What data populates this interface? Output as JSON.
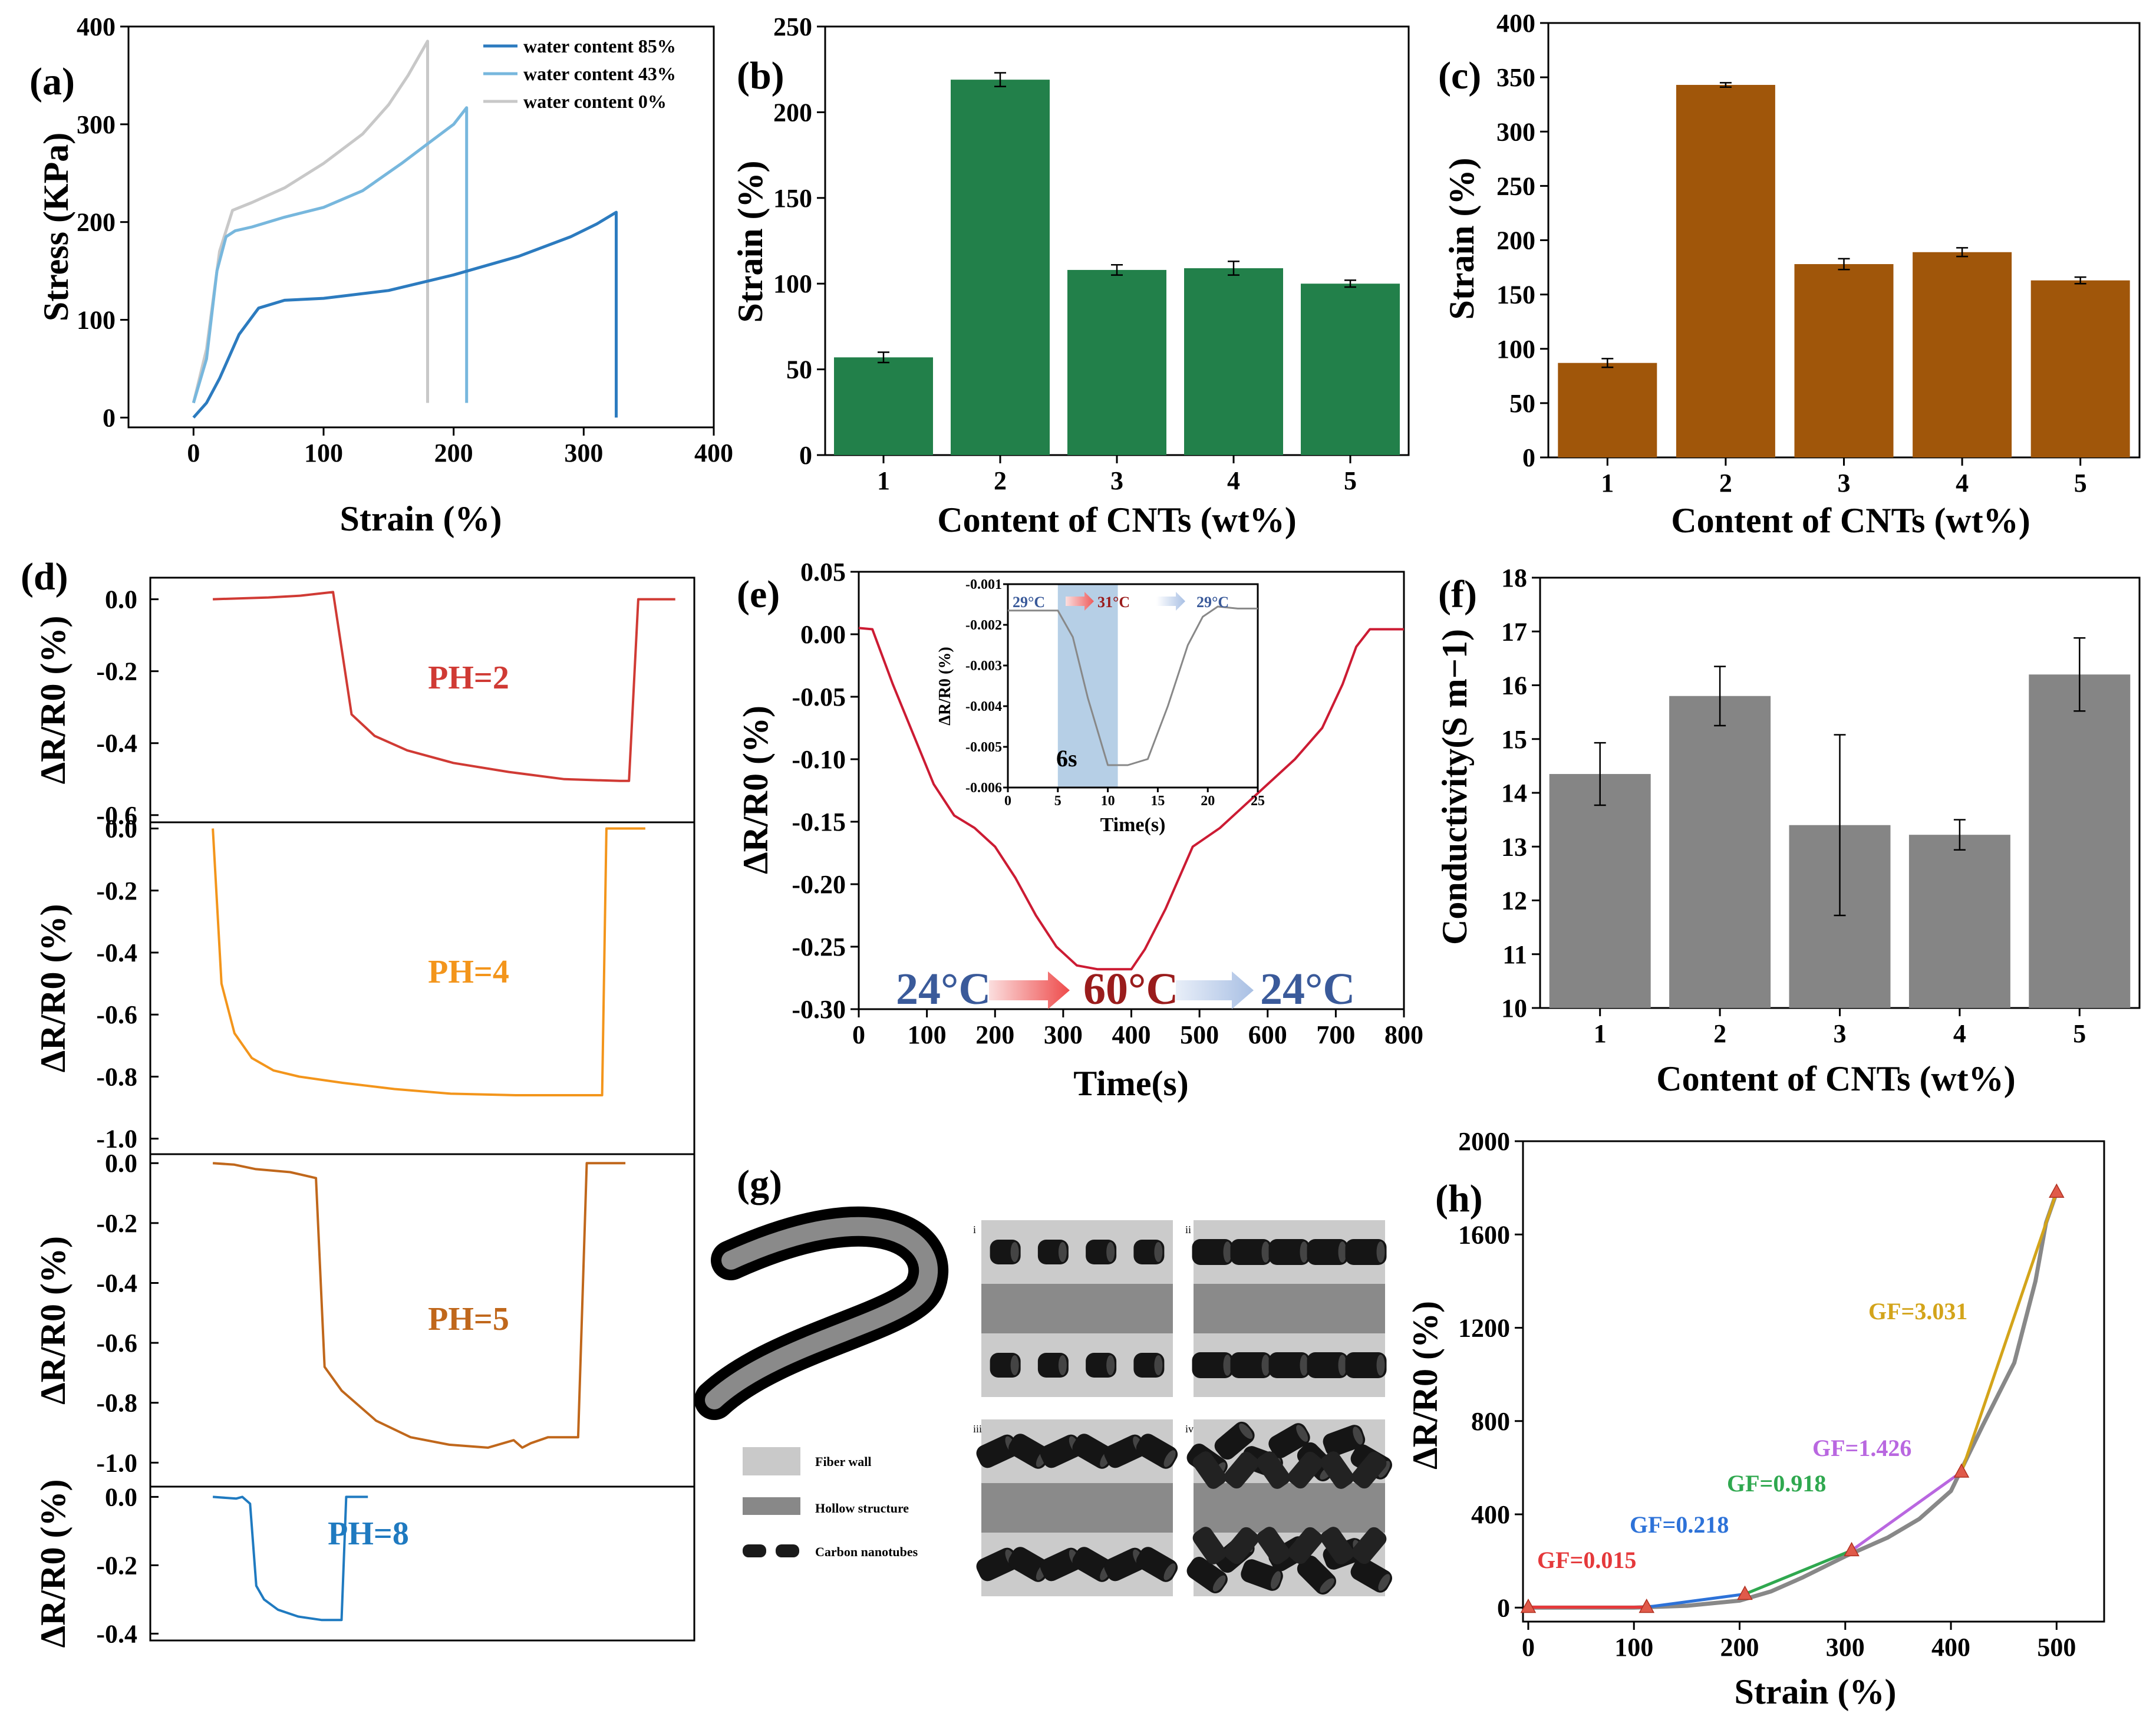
{
  "colors": {
    "green": "#22804a",
    "brown": "#a0560a",
    "gray_bar": "#858585",
    "wc85": "#2c7bbf",
    "wc43": "#77b7dd",
    "wc0": "#c8c8c8",
    "ph2": "#d03a34",
    "ph4": "#f3951b",
    "ph5": "#c0671b",
    "ph8": "#1f7ac0",
    "e_line": "#cc1b33",
    "temp_blue": "#3a5a9a",
    "temp_red": "#9a1c1c",
    "gf_red": "#e5393b",
    "gf_blue": "#2d72d8",
    "gf_green": "#2fa84f",
    "gf_purple": "#b967e0",
    "gf_gold": "#d3a41a"
  },
  "chart_data": [
    {
      "id": "a",
      "panel_label": "(a)",
      "type": "line",
      "xlabel": "Strain (%)",
      "ylabel": "Stress (KPa)",
      "xlim": [
        -50,
        400
      ],
      "ylim": [
        0,
        400
      ],
      "xticks": [
        "0",
        "100",
        "200",
        "300",
        "400"
      ],
      "yticks": [
        "0",
        "100",
        "200",
        "300",
        "400"
      ],
      "legend": [
        "water content 85%",
        "water content 43%",
        "water content 0%"
      ],
      "series": [
        {
          "name": "water content 85%",
          "x": [
            0,
            10,
            20,
            35,
            50,
            70,
            100,
            150,
            200,
            250,
            290,
            310,
            325,
            325
          ],
          "y": [
            0,
            15,
            40,
            85,
            112,
            120,
            122,
            130,
            146,
            165,
            185,
            198,
            210,
            0
          ]
        },
        {
          "name": "water content 43%",
          "x": [
            0,
            10,
            18,
            25,
            32,
            45,
            70,
            100,
            130,
            160,
            180,
            200,
            210,
            210
          ],
          "y": [
            15,
            60,
            150,
            185,
            191,
            195,
            205,
            215,
            232,
            260,
            280,
            300,
            317,
            15
          ]
        },
        {
          "name": "water content 0%",
          "x": [
            0,
            10,
            20,
            30,
            45,
            70,
            100,
            130,
            150,
            165,
            180,
            180
          ],
          "y": [
            15,
            70,
            170,
            212,
            220,
            235,
            260,
            290,
            320,
            350,
            385,
            15
          ]
        }
      ]
    },
    {
      "id": "b",
      "panel_label": "(b)",
      "type": "bar",
      "xlabel": "Content of CNTs (wt%)",
      "ylabel": "Strain (%)",
      "ylim": [
        0,
        250
      ],
      "yticks": [
        "0",
        "50",
        "100",
        "150",
        "200",
        "250"
      ],
      "categories": [
        "1",
        "2",
        "3",
        "4",
        "5"
      ],
      "values": [
        57,
        219,
        108,
        109,
        100
      ],
      "errors": [
        3,
        4,
        3,
        4,
        2
      ]
    },
    {
      "id": "c",
      "panel_label": "(c)",
      "type": "bar",
      "xlabel": "Content of CNTs (wt%)",
      "ylabel": "Strain (%)",
      "ylim": [
        0,
        400
      ],
      "yticks": [
        "0",
        "50",
        "100",
        "150",
        "200",
        "250",
        "300",
        "350",
        "400"
      ],
      "categories": [
        "1",
        "2",
        "3",
        "4",
        "5"
      ],
      "values": [
        87,
        343,
        178,
        189,
        163
      ],
      "errors": [
        4,
        2,
        5,
        4,
        3
      ]
    },
    {
      "id": "d",
      "panel_label": "(d)",
      "type": "line",
      "ylabel": "ΔR/R0 (%)",
      "subplots": [
        {
          "label": "PH=2",
          "ylim": [
            -0.62,
            0.06
          ],
          "yticks": [
            "0.0",
            "-0.2",
            "-0.4",
            "-0.6"
          ],
          "tickvals": [
            0,
            -0.2,
            -0.4,
            -0.6
          ],
          "x": [
            0,
            0.12,
            0.19,
            0.26,
            0.3,
            0.35,
            0.42,
            0.52,
            0.64,
            0.76,
            0.88,
            0.9,
            0.92,
            1.0
          ],
          "y": [
            0,
            0.005,
            0.01,
            0.02,
            -0.32,
            -0.38,
            -0.42,
            -0.455,
            -0.48,
            -0.5,
            -0.505,
            -0.505,
            0,
            0
          ]
        },
        {
          "label": "PH=4",
          "ylim": [
            -1.05,
            0.02
          ],
          "yticks": [
            "0.0",
            "-0.2",
            "-0.4",
            "-0.6",
            "-0.8",
            "-1.0"
          ],
          "tickvals": [
            0,
            -0.2,
            -0.4,
            -0.6,
            -0.8,
            -1.0
          ],
          "x": [
            0.0,
            0.02,
            0.05,
            0.09,
            0.14,
            0.2,
            0.3,
            0.42,
            0.55,
            0.7,
            0.9,
            0.91,
            0.93,
            1.0
          ],
          "y": [
            0,
            -0.5,
            -0.66,
            -0.74,
            -0.78,
            -0.8,
            -0.82,
            -0.84,
            -0.855,
            -0.86,
            -0.86,
            0,
            0,
            0
          ]
        },
        {
          "label": "PH=5",
          "ylim": [
            -1.08,
            0.03
          ],
          "yticks": [
            "0.0",
            "-0.2",
            "-0.4",
            "-0.6",
            "-0.8",
            "-1.0"
          ],
          "tickvals": [
            0,
            -0.2,
            -0.4,
            -0.6,
            -0.8,
            -1.0
          ],
          "x": [
            0,
            0.05,
            0.1,
            0.18,
            0.24,
            0.26,
            0.3,
            0.38,
            0.46,
            0.55,
            0.64,
            0.7,
            0.72,
            0.74,
            0.78,
            0.85,
            0.87,
            0.9,
            0.96
          ],
          "y": [
            0,
            -0.005,
            -0.02,
            -0.03,
            -0.05,
            -0.68,
            -0.76,
            -0.86,
            -0.915,
            -0.94,
            -0.95,
            -0.925,
            -0.95,
            -0.935,
            -0.915,
            -0.915,
            0,
            0,
            0
          ]
        },
        {
          "label": "PH=8",
          "ylim": [
            -0.42,
            0.03
          ],
          "yticks": [
            "0.0",
            "-0.2",
            "-0.4"
          ],
          "tickvals": [
            0,
            -0.2,
            -0.4
          ],
          "x": [
            0,
            0.15,
            0.19,
            0.24,
            0.28,
            0.33,
            0.42,
            0.55,
            0.7,
            0.83,
            0.86,
            0.9,
            1.0
          ],
          "y": [
            0,
            -0.005,
            0,
            -0.02,
            -0.26,
            -0.3,
            -0.33,
            -0.35,
            -0.36,
            -0.36,
            0,
            0,
            0
          ]
        }
      ]
    },
    {
      "id": "e",
      "panel_label": "(e)",
      "type": "line",
      "xlabel": "Time(s)",
      "ylabel": "ΔR/R0 (%)",
      "xlim": [
        0,
        800
      ],
      "ylim": [
        -0.3,
        0.05
      ],
      "xticks": [
        "0",
        "100",
        "200",
        "300",
        "400",
        "500",
        "600",
        "700",
        "800"
      ],
      "yticks": [
        "0.05",
        "0.00",
        "-0.05",
        "-0.10",
        "-0.15",
        "-0.20",
        "-0.25",
        "-0.30"
      ],
      "x": [
        0,
        20,
        50,
        80,
        110,
        140,
        170,
        200,
        230,
        260,
        290,
        320,
        350,
        400,
        420,
        450,
        490,
        530,
        560,
        600,
        640,
        680,
        710,
        730,
        750,
        770,
        800
      ],
      "y": [
        0.005,
        0.004,
        -0.04,
        -0.08,
        -0.12,
        -0.145,
        -0.155,
        -0.17,
        -0.195,
        -0.225,
        -0.25,
        -0.265,
        -0.268,
        -0.268,
        -0.252,
        -0.22,
        -0.17,
        -0.155,
        -0.14,
        -0.12,
        -0.1,
        -0.075,
        -0.04,
        -0.01,
        0.004,
        0.004,
        0.004
      ],
      "annotation": {
        "start": "24°C",
        "middle": "60°C",
        "end": "24°C"
      },
      "inset": {
        "xlabel": "Time(s)",
        "ylabel": "ΔR/R0 (%)",
        "xlim": [
          0,
          25
        ],
        "ylim": [
          -0.006,
          -0.001
        ],
        "xticks": [
          "0",
          "5",
          "10",
          "15",
          "20",
          "25"
        ],
        "yticks": [
          "-0.001",
          "-0.002",
          "-0.003",
          "-0.004",
          "-0.005",
          "-0.006"
        ],
        "x": [
          0,
          5,
          6.5,
          8,
          10,
          11,
          12,
          14,
          16,
          18,
          19.5,
          21,
          23,
          25
        ],
        "y": [
          -0.00165,
          -0.00165,
          -0.0023,
          -0.0038,
          -0.00545,
          -0.00545,
          -0.00545,
          -0.0053,
          -0.004,
          -0.0025,
          -0.0018,
          -0.00155,
          -0.0016,
          -0.0016
        ],
        "highlight": [
          5,
          11
        ],
        "highlight_label": "6s",
        "temps": [
          "29°C",
          "31°C",
          "29°C"
        ]
      }
    },
    {
      "id": "f",
      "panel_label": "(f)",
      "type": "bar",
      "xlabel": "Content of CNTs (wt%)",
      "ylabel": "Conductivity(S m−1)",
      "ylim": [
        10,
        18
      ],
      "yticks": [
        "10",
        "11",
        "12",
        "13",
        "14",
        "15",
        "16",
        "17",
        "18"
      ],
      "categories": [
        "1",
        "2",
        "3",
        "4",
        "5"
      ],
      "values": [
        14.35,
        15.8,
        13.4,
        13.22,
        16.2
      ],
      "errors": [
        0.58,
        0.55,
        1.68,
        0.28,
        0.68
      ]
    },
    {
      "id": "h",
      "panel_label": "(h)",
      "type": "line",
      "xlabel": "Strain (%)",
      "ylabel": "ΔR/R0 (%)",
      "xlim": [
        -5,
        545
      ],
      "ylim": [
        -60,
        2000
      ],
      "xticks": [
        "0",
        "100",
        "200",
        "300",
        "400",
        "500"
      ],
      "yticks": [
        "0",
        "400",
        "800",
        "1200",
        "1600",
        "2000"
      ],
      "xtickvals": [
        0,
        100,
        200,
        300,
        400,
        500
      ],
      "ytickvals": [
        0,
        400,
        800,
        1200,
        1600,
        2000
      ],
      "curve": {
        "x": [
          0,
          100,
          150,
          200,
          230,
          260,
          300,
          340,
          370,
          400,
          430,
          460,
          480,
          490,
          500
        ],
        "y": [
          0,
          0,
          8,
          30,
          70,
          130,
          220,
          300,
          380,
          500,
          780,
          1050,
          1400,
          1650,
          1780
        ]
      },
      "points": {
        "x": [
          0,
          112,
          205,
          306,
          410,
          500
        ],
        "y": [
          2,
          2,
          58,
          245,
          582,
          1782
        ]
      },
      "segments": [
        {
          "label": "GF=0.015",
          "from": 0,
          "to": 1
        },
        {
          "label": "GF=0.218",
          "from": 1,
          "to": 2
        },
        {
          "label": "GF=0.918",
          "from": 2,
          "to": 3
        },
        {
          "label": "GF=1.426",
          "from": 3,
          "to": 4
        },
        {
          "label": "GF=3.031",
          "from": 4,
          "to": 5
        }
      ]
    }
  ],
  "diagram_g": {
    "panel_label": "(g)",
    "legend": [
      "Fiber wall",
      "Hollow structure",
      "Carbon nanotubes"
    ],
    "sub_labels": [
      "i",
      "ii",
      "iii",
      "iv"
    ]
  }
}
